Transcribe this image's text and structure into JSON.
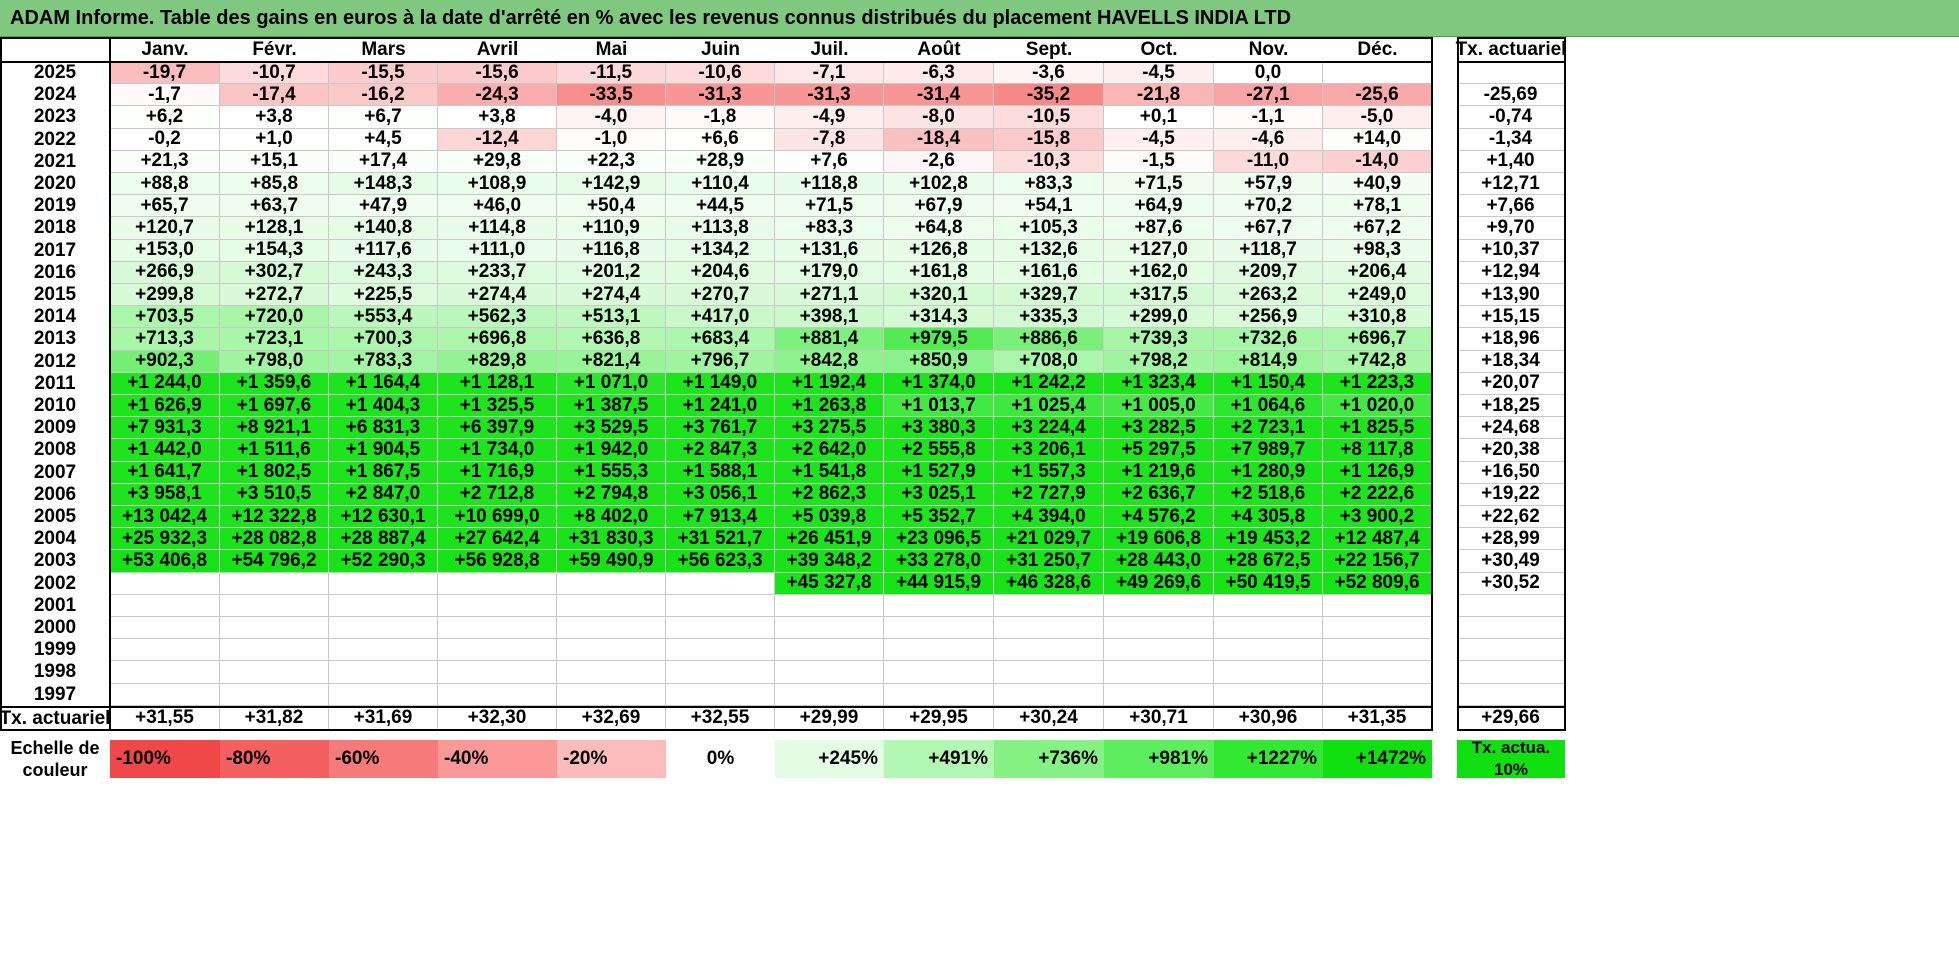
{
  "title": "ADAM Informe. Table des gains en euros à la date d'arrêté en % avec les revenus connus distribués du placement HAVELLS INDIA LTD",
  "months": [
    "Janv.",
    "Févr.",
    "Mars",
    "Avril",
    "Mai",
    "Juin",
    "Juil.",
    "Août",
    "Sept.",
    "Oct.",
    "Nov.",
    "Déc."
  ],
  "rate_header": "Tx. actuariel",
  "rows": [
    {
      "year": "2025",
      "values": [
        "-19,7",
        "-10,7",
        "-15,5",
        "-15,6",
        "-11,5",
        "-10,6",
        "-7,1",
        "-6,3",
        "-3,6",
        "-4,5",
        "0,0",
        ""
      ],
      "rate": ""
    },
    {
      "year": "2024",
      "values": [
        "-1,7",
        "-17,4",
        "-16,2",
        "-24,3",
        "-33,5",
        "-31,3",
        "-31,3",
        "-31,4",
        "-35,2",
        "-21,8",
        "-27,1",
        "-25,6"
      ],
      "rate": "-25,69"
    },
    {
      "year": "2023",
      "values": [
        "+6,2",
        "+3,8",
        "+6,7",
        "+3,8",
        "-4,0",
        "-1,8",
        "-4,9",
        "-8,0",
        "-10,5",
        "+0,1",
        "-1,1",
        "-5,0"
      ],
      "rate": "-0,74"
    },
    {
      "year": "2022",
      "values": [
        "-0,2",
        "+1,0",
        "+4,5",
        "-12,4",
        "-1,0",
        "+6,6",
        "-7,8",
        "-18,4",
        "-15,8",
        "-4,5",
        "-4,6",
        "+14,0"
      ],
      "rate": "-1,34"
    },
    {
      "year": "2021",
      "values": [
        "+21,3",
        "+15,1",
        "+17,4",
        "+29,8",
        "+22,3",
        "+28,9",
        "+7,6",
        "-2,6",
        "-10,3",
        "-1,5",
        "-11,0",
        "-14,0"
      ],
      "rate": "+1,40"
    },
    {
      "year": "2020",
      "values": [
        "+88,8",
        "+85,8",
        "+148,3",
        "+108,9",
        "+142,9",
        "+110,4",
        "+118,8",
        "+102,8",
        "+83,3",
        "+71,5",
        "+57,9",
        "+40,9"
      ],
      "rate": "+12,71"
    },
    {
      "year": "2019",
      "values": [
        "+65,7",
        "+63,7",
        "+47,9",
        "+46,0",
        "+50,4",
        "+44,5",
        "+71,5",
        "+67,9",
        "+54,1",
        "+64,9",
        "+70,2",
        "+78,1"
      ],
      "rate": "+7,66"
    },
    {
      "year": "2018",
      "values": [
        "+120,7",
        "+128,1",
        "+140,8",
        "+114,8",
        "+110,9",
        "+113,8",
        "+83,3",
        "+64,8",
        "+105,3",
        "+87,6",
        "+67,7",
        "+67,2"
      ],
      "rate": "+9,70"
    },
    {
      "year": "2017",
      "values": [
        "+153,0",
        "+154,3",
        "+117,6",
        "+111,0",
        "+116,8",
        "+134,2",
        "+131,6",
        "+126,8",
        "+132,6",
        "+127,0",
        "+118,7",
        "+98,3"
      ],
      "rate": "+10,37"
    },
    {
      "year": "2016",
      "values": [
        "+266,9",
        "+302,7",
        "+243,3",
        "+233,7",
        "+201,2",
        "+204,6",
        "+179,0",
        "+161,8",
        "+161,6",
        "+162,0",
        "+209,7",
        "+206,4"
      ],
      "rate": "+12,94"
    },
    {
      "year": "2015",
      "values": [
        "+299,8",
        "+272,7",
        "+225,5",
        "+274,4",
        "+274,4",
        "+270,7",
        "+271,1",
        "+320,1",
        "+329,7",
        "+317,5",
        "+263,2",
        "+249,0"
      ],
      "rate": "+13,90"
    },
    {
      "year": "2014",
      "values": [
        "+703,5",
        "+720,0",
        "+553,4",
        "+562,3",
        "+513,1",
        "+417,0",
        "+398,1",
        "+314,3",
        "+335,3",
        "+299,0",
        "+256,9",
        "+310,8"
      ],
      "rate": "+15,15"
    },
    {
      "year": "2013",
      "values": [
        "+713,3",
        "+723,1",
        "+700,3",
        "+696,8",
        "+636,8",
        "+683,4",
        "+881,4",
        "+979,5",
        "+886,6",
        "+739,3",
        "+732,6",
        "+696,7"
      ],
      "rate": "+18,96"
    },
    {
      "year": "2012",
      "values": [
        "+902,3",
        "+798,0",
        "+783,3",
        "+829,8",
        "+821,4",
        "+796,7",
        "+842,8",
        "+850,9",
        "+708,0",
        "+798,2",
        "+814,9",
        "+742,8"
      ],
      "rate": "+18,34"
    },
    {
      "year": "2011",
      "values": [
        "+1 244,0",
        "+1 359,6",
        "+1 164,4",
        "+1 128,1",
        "+1 071,0",
        "+1 149,0",
        "+1 192,4",
        "+1 374,0",
        "+1 242,2",
        "+1 323,4",
        "+1 150,4",
        "+1 223,3"
      ],
      "rate": "+20,07"
    },
    {
      "year": "2010",
      "values": [
        "+1 626,9",
        "+1 697,6",
        "+1 404,3",
        "+1 325,5",
        "+1 387,5",
        "+1 241,0",
        "+1 263,8",
        "+1 013,7",
        "+1 025,4",
        "+1 005,0",
        "+1 064,6",
        "+1 020,0"
      ],
      "rate": "+18,25"
    },
    {
      "year": "2009",
      "values": [
        "+7 931,3",
        "+8 921,1",
        "+6 831,3",
        "+6 397,9",
        "+3 529,5",
        "+3 761,7",
        "+3 275,5",
        "+3 380,3",
        "+3 224,4",
        "+3 282,5",
        "+2 723,1",
        "+1 825,5"
      ],
      "rate": "+24,68"
    },
    {
      "year": "2008",
      "values": [
        "+1 442,0",
        "+1 511,6",
        "+1 904,5",
        "+1 734,0",
        "+1 942,0",
        "+2 847,3",
        "+2 642,0",
        "+2 555,8",
        "+3 206,1",
        "+5 297,5",
        "+7 989,7",
        "+8 117,8"
      ],
      "rate": "+20,38"
    },
    {
      "year": "2007",
      "values": [
        "+1 641,7",
        "+1 802,5",
        "+1 867,5",
        "+1 716,9",
        "+1 555,3",
        "+1 588,1",
        "+1 541,8",
        "+1 527,9",
        "+1 557,3",
        "+1 219,6",
        "+1 280,9",
        "+1 126,9"
      ],
      "rate": "+16,50"
    },
    {
      "year": "2006",
      "values": [
        "+3 958,1",
        "+3 510,5",
        "+2 847,0",
        "+2 712,8",
        "+2 794,8",
        "+3 056,1",
        "+2 862,3",
        "+3 025,1",
        "+2 727,9",
        "+2 636,7",
        "+2 518,6",
        "+2 222,6"
      ],
      "rate": "+19,22"
    },
    {
      "year": "2005",
      "values": [
        "+13 042,4",
        "+12 322,8",
        "+12 630,1",
        "+10 699,0",
        "+8 402,0",
        "+7 913,4",
        "+5 039,8",
        "+5 352,7",
        "+4 394,0",
        "+4 576,2",
        "+4 305,8",
        "+3 900,2"
      ],
      "rate": "+22,62"
    },
    {
      "year": "2004",
      "values": [
        "+25 932,3",
        "+28 082,8",
        "+28 887,4",
        "+27 642,4",
        "+31 830,3",
        "+31 521,7",
        "+26 451,9",
        "+23 096,5",
        "+21 029,7",
        "+19 606,8",
        "+19 453,2",
        "+12 487,4"
      ],
      "rate": "+28,99"
    },
    {
      "year": "2003",
      "values": [
        "+53 406,8",
        "+54 796,2",
        "+52 290,3",
        "+56 928,8",
        "+59 490,9",
        "+56 623,3",
        "+39 348,2",
        "+33 278,0",
        "+31 250,7",
        "+28 443,0",
        "+28 672,5",
        "+22 156,7"
      ],
      "rate": "+30,49"
    },
    {
      "year": "2002",
      "values": [
        "",
        "",
        "",
        "",
        "",
        "",
        "+45 327,8",
        "+44 915,9",
        "+46 328,6",
        "+49 269,6",
        "+50 419,5",
        "+52 809,6"
      ],
      "rate": "+30,52"
    },
    {
      "year": "2001",
      "values": [
        "",
        "",
        "",
        "",
        "",
        "",
        "",
        "",
        "",
        "",
        "",
        ""
      ],
      "rate": ""
    },
    {
      "year": "2000",
      "values": [
        "",
        "",
        "",
        "",
        "",
        "",
        "",
        "",
        "",
        "",
        "",
        ""
      ],
      "rate": ""
    },
    {
      "year": "1999",
      "values": [
        "",
        "",
        "",
        "",
        "",
        "",
        "",
        "",
        "",
        "",
        "",
        ""
      ],
      "rate": ""
    },
    {
      "year": "1998",
      "values": [
        "",
        "",
        "",
        "",
        "",
        "",
        "",
        "",
        "",
        "",
        "",
        ""
      ],
      "rate": ""
    },
    {
      "year": "1997",
      "values": [
        "",
        "",
        "",
        "",
        "",
        "",
        "",
        "",
        "",
        "",
        "",
        ""
      ],
      "rate": ""
    }
  ],
  "footer": {
    "label": "Tx. actuariel",
    "values": [
      "+31,55",
      "+31,82",
      "+31,69",
      "+32,30",
      "+32,69",
      "+32,55",
      "+29,99",
      "+29,95",
      "+30,24",
      "+30,71",
      "+30,96",
      "+31,35"
    ],
    "rate": "+29,66"
  },
  "scale": {
    "label": "Echelle de couleur",
    "items": [
      {
        "text": "-100%",
        "color": "#f04848"
      },
      {
        "text": "-80%",
        "color": "#f46060"
      },
      {
        "text": "-60%",
        "color": "#f77a7a"
      },
      {
        "text": "-40%",
        "color": "#fa9898"
      },
      {
        "text": "-20%",
        "color": "#fcbcbc"
      },
      {
        "text": "0%",
        "color": "#ffffff"
      },
      {
        "text": "+245%",
        "color": "#e4fce4"
      },
      {
        "text": "+491%",
        "color": "#b2f8b2"
      },
      {
        "text": "+736%",
        "color": "#86f286"
      },
      {
        "text": "+981%",
        "color": "#5cee5c"
      },
      {
        "text": "+1227%",
        "color": "#32e832"
      },
      {
        "text": "+1472%",
        "color": "#10e010"
      }
    ],
    "rate_label": "Tx. actua. 10%",
    "rate_color": "#10e010"
  },
  "colors": {
    "title_bg": "#80c880",
    "strong_green": "#10e010"
  }
}
